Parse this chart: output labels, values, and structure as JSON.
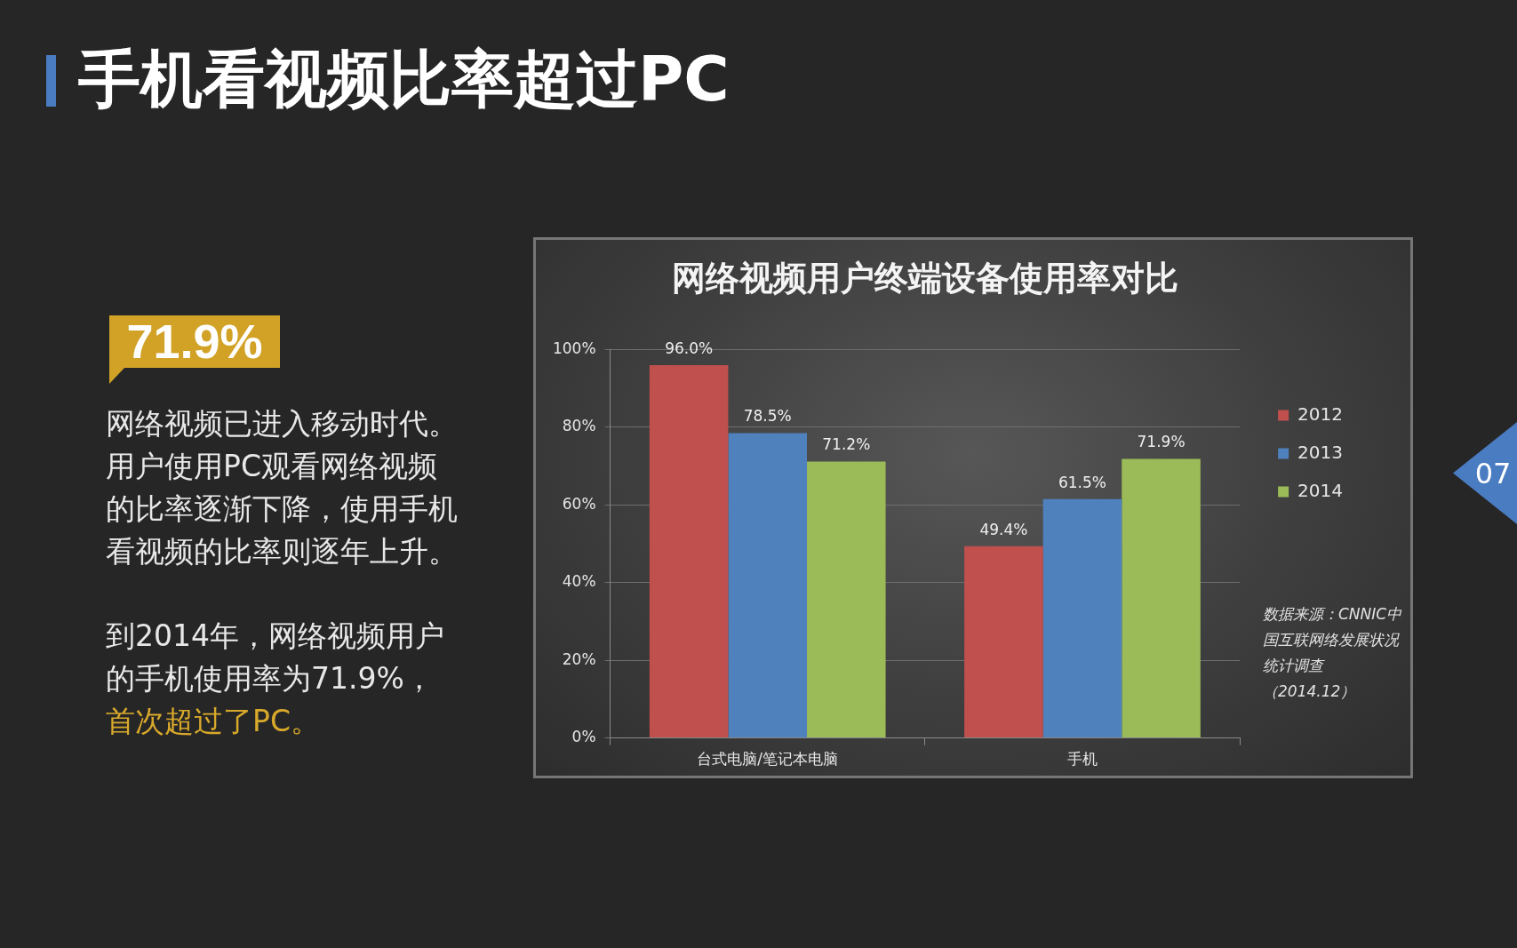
{
  "chart_data": {
    "type": "bar",
    "title": "网络视频用户终端设备使用率对比",
    "categories": [
      "台式电脑/笔记本电脑",
      "手机"
    ],
    "series": [
      {
        "name": "2012",
        "color": "#c0504d",
        "values": [
          96.0,
          49.4
        ],
        "value_labels": [
          "96.0%",
          "49.4%"
        ]
      },
      {
        "name": "2013",
        "color": "#4f81bd",
        "values": [
          78.5,
          61.5
        ],
        "value_labels": [
          "78.5%",
          "61.5%"
        ]
      },
      {
        "name": "2014",
        "color": "#9bbb59",
        "values": [
          71.2,
          71.9
        ],
        "value_labels": [
          "71.2%",
          "71.9%"
        ]
      }
    ],
    "ylim": [
      0,
      100
    ],
    "yticks": [
      {
        "value": 0,
        "label": "0%"
      },
      {
        "value": 20,
        "label": "20%"
      },
      {
        "value": 40,
        "label": "40%"
      },
      {
        "value": 60,
        "label": "60%"
      },
      {
        "value": 80,
        "label": "80%"
      },
      {
        "value": 100,
        "label": "100%"
      }
    ],
    "grid": "y",
    "legend": "right",
    "annotations": [
      "手机看视频比率超过PC",
      "71.9%",
      "网络视频已进入移动时代。用户使用PC观看网络视频的比率逐渐下降，使用手机看视频的比率则逐年上升。",
      "到2014年，网络视频用户的手机使用率为71.9%，",
      "首次超过了PC。",
      "数据来源：CNNIC中国互联网络发展状况统计调查（2014.12）",
      "07"
    ]
  }
}
